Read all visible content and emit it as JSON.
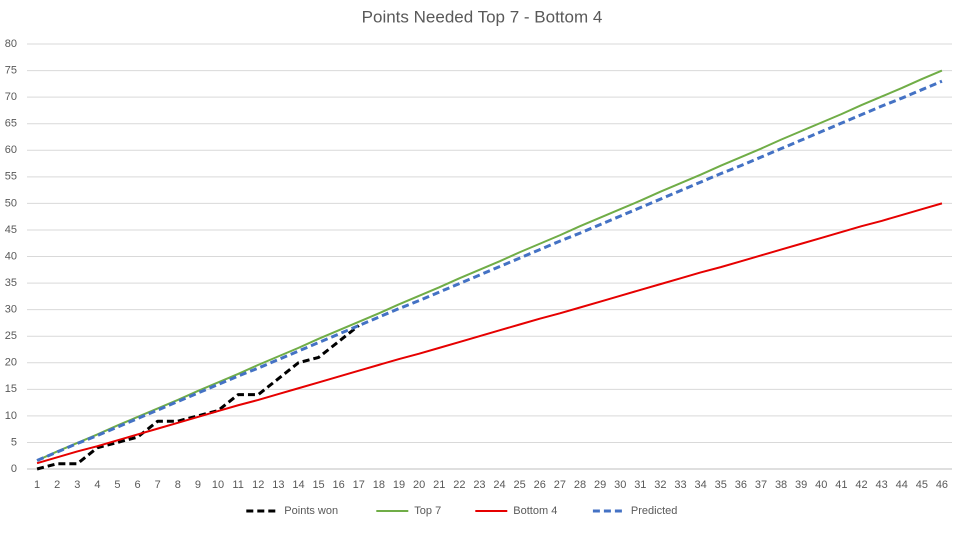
{
  "chart_data": {
    "type": "line",
    "title": "Points Needed Top 7 - Bottom 4",
    "categories": [
      1,
      2,
      3,
      4,
      5,
      6,
      7,
      8,
      9,
      10,
      11,
      12,
      13,
      14,
      15,
      16,
      17,
      18,
      19,
      20,
      21,
      22,
      23,
      24,
      25,
      26,
      27,
      28,
      29,
      30,
      31,
      32,
      33,
      34,
      35,
      36,
      37,
      38,
      39,
      40,
      41,
      42,
      43,
      44,
      45,
      46
    ],
    "series": [
      {
        "name": "Points won",
        "color": "#000000",
        "dashed": true,
        "values": [
          0,
          1,
          1,
          4,
          5,
          6,
          9,
          9,
          10,
          11,
          14,
          14,
          17,
          20,
          21,
          24,
          27,
          null,
          null,
          null,
          null,
          null,
          null,
          null,
          null,
          null,
          null,
          null,
          null,
          null,
          null,
          null,
          null,
          null,
          null,
          null,
          null,
          null,
          null,
          null,
          null,
          null,
          null,
          null,
          null,
          null
        ]
      },
      {
        "name": "Top 7",
        "color": "#70ad47",
        "dashed": false,
        "values": [
          1.6,
          3.3,
          4.9,
          6.5,
          8.2,
          9.8,
          11.4,
          13.0,
          14.7,
          16.3,
          17.9,
          19.6,
          21.2,
          22.8,
          24.5,
          26.1,
          27.7,
          29.3,
          31.0,
          32.6,
          34.2,
          35.9,
          37.5,
          39.1,
          40.8,
          42.4,
          44.0,
          45.7,
          47.3,
          48.9,
          50.5,
          52.2,
          53.8,
          55.4,
          57.1,
          58.7,
          60.3,
          62.0,
          63.6,
          65.2,
          66.8,
          68.5,
          70.1,
          71.7,
          73.4,
          75.0
        ]
      },
      {
        "name": "Bottom 4",
        "color": "#e60000",
        "dashed": false,
        "values": [
          1.1,
          2.2,
          3.3,
          4.3,
          5.4,
          6.5,
          7.6,
          8.7,
          9.8,
          10.9,
          12.0,
          13.0,
          14.1,
          15.2,
          16.3,
          17.4,
          18.5,
          19.6,
          20.7,
          21.7,
          22.8,
          23.9,
          25.0,
          26.1,
          27.2,
          28.3,
          29.3,
          30.4,
          31.5,
          32.6,
          33.7,
          34.8,
          35.9,
          37.0,
          38.0,
          39.1,
          40.2,
          41.3,
          42.4,
          43.5,
          44.6,
          45.7,
          46.7,
          47.8,
          48.9,
          50.0
        ]
      },
      {
        "name": "Predicted",
        "color": "#4472c4",
        "dashed": true,
        "values": [
          1.6,
          3.2,
          4.8,
          6.3,
          7.9,
          9.5,
          11.1,
          12.7,
          14.3,
          15.9,
          17.5,
          19.0,
          20.6,
          22.2,
          23.8,
          25.4,
          27.0,
          28.6,
          30.2,
          31.7,
          33.3,
          34.9,
          36.5,
          38.1,
          39.7,
          41.3,
          42.9,
          44.4,
          46.0,
          47.6,
          49.2,
          50.8,
          52.4,
          54.0,
          55.6,
          57.1,
          58.7,
          60.3,
          61.9,
          63.5,
          65.1,
          66.7,
          68.3,
          69.8,
          71.4,
          73.0
        ]
      }
    ],
    "ylim": [
      0,
      80
    ],
    "yticks": [
      0,
      5,
      10,
      15,
      20,
      25,
      30,
      35,
      40,
      45,
      50,
      55,
      60,
      65,
      70,
      75,
      80
    ],
    "grid": true,
    "legend": "bottom"
  }
}
